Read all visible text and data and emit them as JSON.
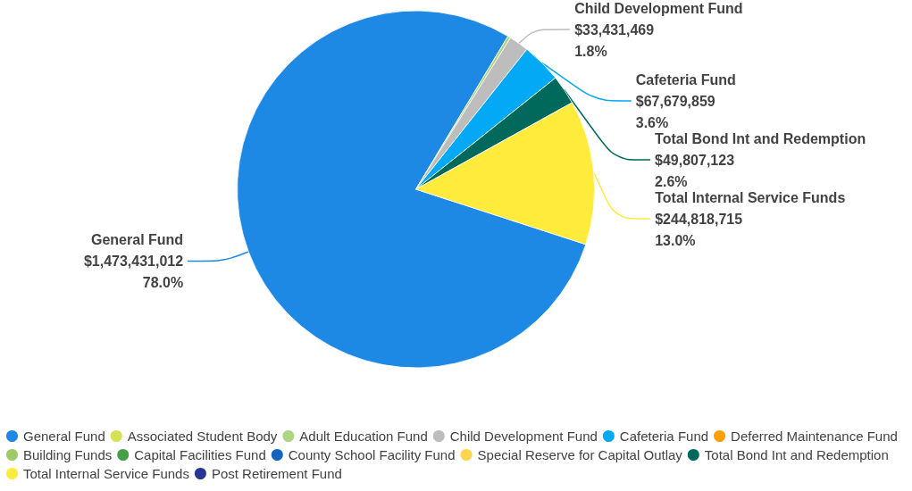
{
  "chart_data": {
    "type": "pie",
    "categories": [
      "General Fund",
      "Associated Student Body",
      "Adult Education Fund",
      "Child Development Fund",
      "Cafeteria Fund",
      "Deferred Maintenance Fund",
      "Building Funds",
      "Capital Facilities Fund",
      "County School Facility Fund",
      "Special Reserve for Capital Outlay",
      "Total Bond Int and Redemption",
      "Total Internal Service Funds",
      "Post Retirement Fund"
    ],
    "values": [
      1473431012,
      null,
      5000000,
      33431469,
      67679859,
      null,
      null,
      null,
      null,
      null,
      49807123,
      244818715,
      null
    ],
    "colors": [
      "#1e88e5",
      "#d4e157",
      "#aed581",
      "#bdbdbd",
      "#03a9f4",
      "#ffa000",
      "#9ccc65",
      "#43a047",
      "#1565c0",
      "#ffd54f",
      "#00695c",
      "#ffeb3b",
      "#283593"
    ],
    "value_labels": [
      "$1,473,431,012\n78.0%",
      null,
      null,
      "$33,431,469\n1.8%",
      "$67,679,859\n3.6%",
      null,
      null,
      null,
      null,
      null,
      "$49,807,123\n2.6%",
      "$244,818,715\n13.0%",
      null
    ],
    "legend": "bottom"
  }
}
